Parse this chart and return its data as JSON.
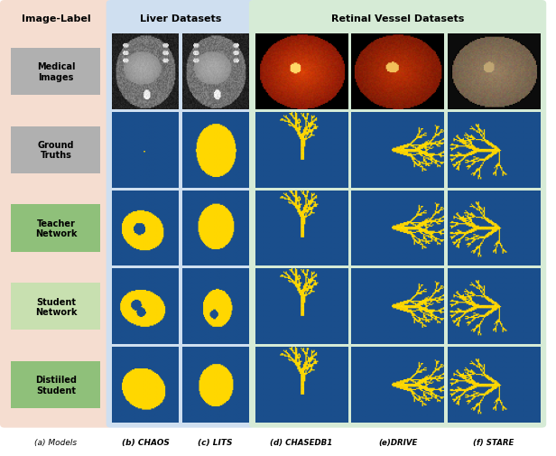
{
  "fig_width": 6.16,
  "fig_height": 5.06,
  "dpi": 100,
  "left_panel_bg": "#f5ddd0",
  "liver_panel_bg": "#cfdff0",
  "retinal_panel_bg": "#d6ebd6",
  "row_labels": [
    "Medical\nImages",
    "Ground\nTruths",
    "Teacher\nNetwork",
    "Student\nNetwork",
    "Distiiled\nStudent"
  ],
  "row_label_box_colors": [
    "#b0b0b0",
    "#b0b0b0",
    "#8fc07a",
    "#c8e0b0",
    "#8fc07a"
  ],
  "title_left": "Image-Label",
  "title_liver": "Liver Datasets",
  "title_retinal": "Retinal Vessel Datasets",
  "col_labels_liver": [
    "(b) CHAOS",
    "(c) LITS"
  ],
  "col_labels_retinal": [
    "(d) CHASEDB1",
    "(e)DRIVE",
    "(f) STARE"
  ],
  "bottom_label_left": "(a) Models",
  "blue_bg": [
    26,
    78,
    140
  ],
  "yellow_seg": [
    255,
    215,
    0
  ],
  "font_size_title": 8,
  "font_size_label": 6.5,
  "font_size_row": 7
}
